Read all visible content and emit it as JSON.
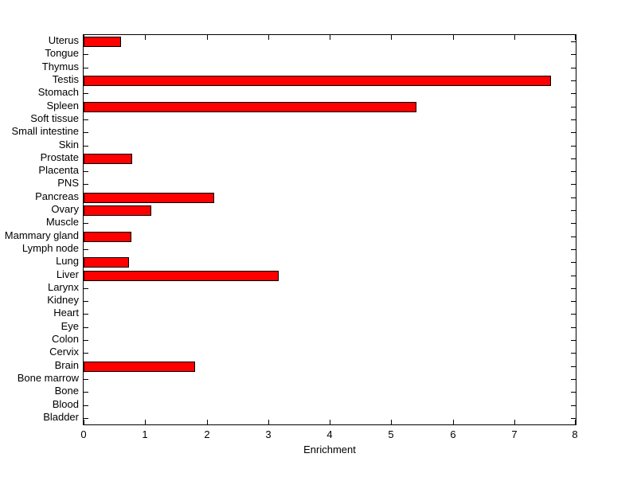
{
  "chart_data": {
    "type": "bar",
    "orientation": "horizontal",
    "title": "",
    "xlabel": "Enrichment",
    "ylabel": "",
    "xlim": [
      0,
      8
    ],
    "xticks": [
      0,
      1,
      2,
      3,
      4,
      5,
      6,
      7,
      8
    ],
    "grid": false,
    "legend": null,
    "background_color": "#FFFFFF",
    "axis_color": "#000000",
    "bar_color": "#FF0000",
    "bar_edge_color": "#000000",
    "categories_top_to_bottom": [
      "Uterus",
      "Tongue",
      "Thymus",
      "Testis",
      "Stomach",
      "Spleen",
      "Soft tissue",
      "Small intestine",
      "Skin",
      "Prostate",
      "Placenta",
      "PNS",
      "Pancreas",
      "Ovary",
      "Muscle",
      "Mammary gland",
      "Lymph node",
      "Lung",
      "Liver",
      "Larynx",
      "Kidney",
      "Heart",
      "Eye",
      "Colon",
      "Cervix",
      "Brain",
      "Bone marrow",
      "Bone",
      "Blood",
      "Bladder"
    ],
    "values": [
      0.58,
      0,
      0,
      7.57,
      0,
      5.38,
      0,
      0,
      0,
      0.77,
      0,
      0,
      2.1,
      1.08,
      0,
      0.75,
      0,
      0.71,
      3.15,
      0,
      0,
      0,
      0,
      0,
      0,
      1.78,
      0,
      0,
      0,
      0
    ]
  }
}
